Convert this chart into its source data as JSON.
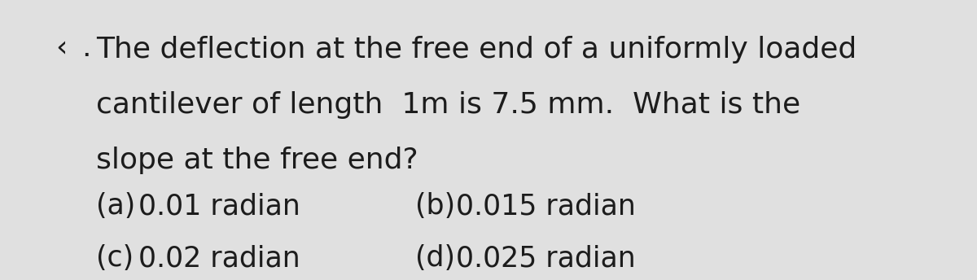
{
  "background_color": "#e0e0e0",
  "bullet_char": "‹",
  "dot_char": ".",
  "line1": "The deflection at the free end of a uniformly loaded",
  "line2": "cantilever of length  1m is 7.5 mm.  What is the",
  "line3": "slope at the free end?",
  "opt_a_label": "(a)",
  "opt_a_value": "0.01 radian",
  "opt_b_label": "(b)",
  "opt_b_value": "0.015 radian",
  "opt_c_label": "(c)",
  "opt_c_value": "0.02 radian",
  "opt_d_label": "(d)",
  "opt_d_value": "0.025 radian",
  "text_color": "#1c1c1c",
  "font_size_main": 26,
  "font_size_options": 25,
  "font_family": "DejaVu Sans"
}
